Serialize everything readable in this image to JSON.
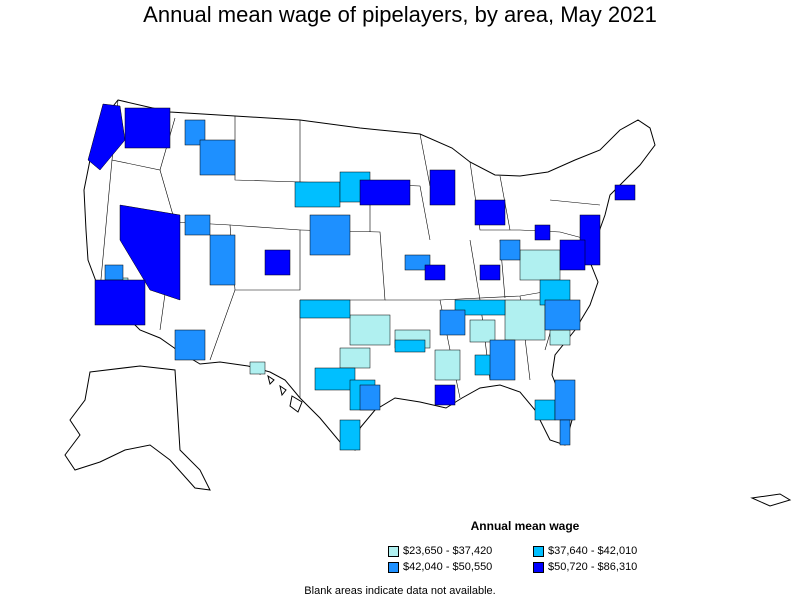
{
  "title": "Annual mean wage of pipelayers, by area, May 2021",
  "legend": {
    "title": "Annual mean wage",
    "items": [
      {
        "label": "$23,650 - $37,420",
        "color": "#b0f0f0"
      },
      {
        "label": "$37,640 - $42,010",
        "color": "#00bfff"
      },
      {
        "label": "$42,040 - $50,550",
        "color": "#1e90ff"
      },
      {
        "label": "$50,720 - $86,310",
        "color": "#0000ff"
      }
    ]
  },
  "footnote": "Blank areas indicate data not available."
}
